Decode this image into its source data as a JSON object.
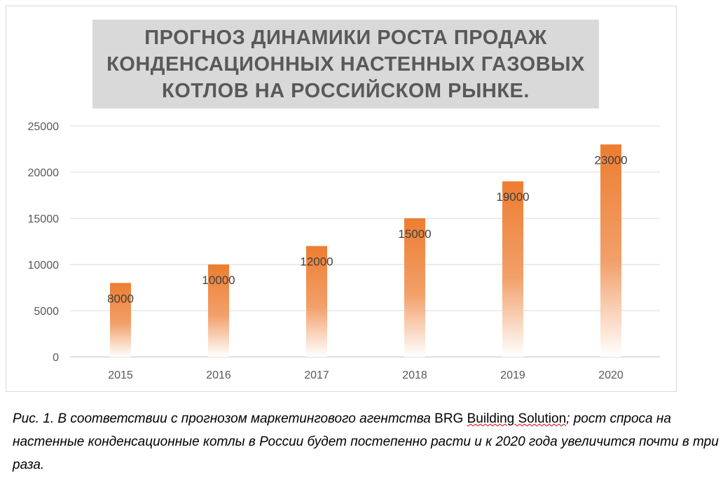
{
  "chart_data": {
    "type": "bar",
    "title": "ПРОГНОЗ ДИНАМИКИ РОСТА ПРОДАЖ КОНДЕНСАЦИОННЫХ НАСТЕННЫХ ГАЗОВЫХ КОТЛОВ НА РОССИЙСКОМ РЫНКЕ.",
    "categories": [
      "2015",
      "2016",
      "2017",
      "2018",
      "2019",
      "2020"
    ],
    "values": [
      8000,
      10000,
      12000,
      15000,
      19000,
      23000
    ],
    "data_labels": [
      "8000",
      "10000",
      "12000",
      "15000",
      "19000",
      "23000"
    ],
    "yticks": [
      "0",
      "5000",
      "10000",
      "15000",
      "20000",
      "25000"
    ],
    "ylim": [
      0,
      25000
    ],
    "xlabel": "",
    "ylabel": "",
    "grid": true,
    "bar_color": "#ed7d31"
  },
  "caption": {
    "part1": "Рис. 1. В соответствии с прогнозом маркетингового агентства ",
    "brand1": "BRG ",
    "brand2": "Building Solution",
    "part2": "; рост спроса на настенные конденсационные котлы в России будет постепенно расти и к 2020 года увеличится почти в три раза."
  }
}
